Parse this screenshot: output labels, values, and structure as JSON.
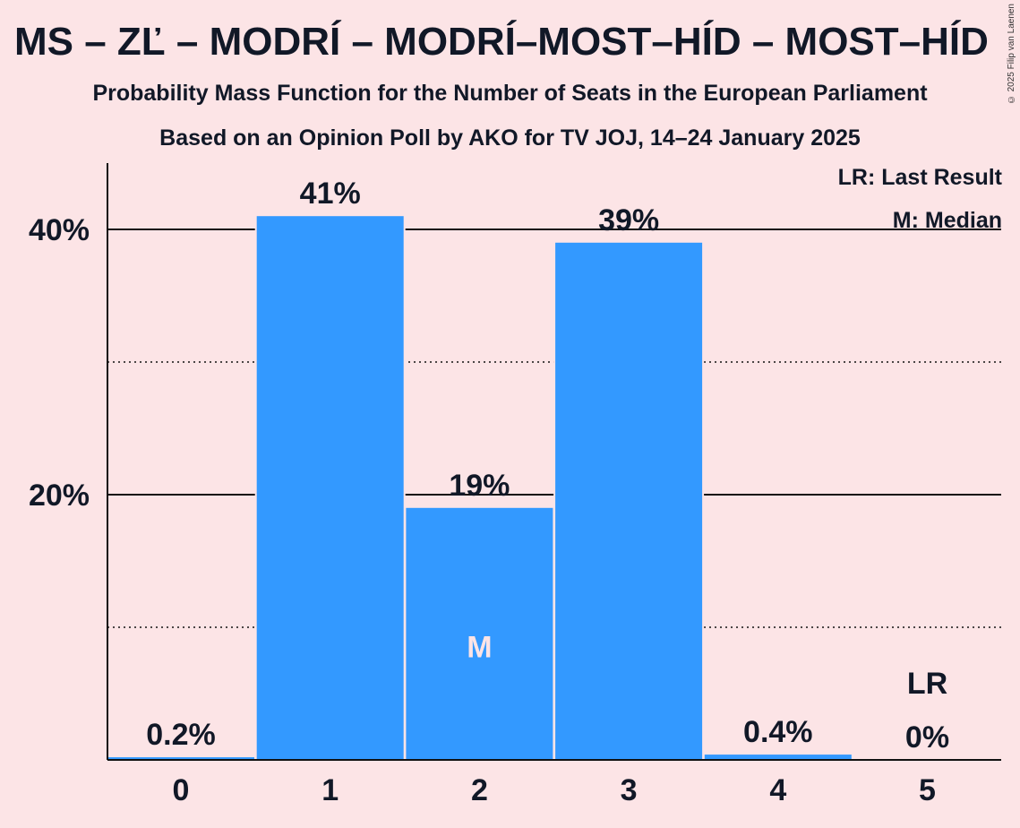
{
  "title": "MS – ZĽ – MODRÍ – MODRÍ–MOST–HÍD – MOST–HÍD",
  "subtitle": "Probability Mass Function for the Number of Seats in the European Parliament",
  "subtitle2": "Based on an Opinion Poll by AKO for TV JOJ, 14–24 January 2025",
  "copyright": "© 2025 Filip van Laenen",
  "legend": {
    "last_result": "LR: Last Result",
    "median": "M: Median"
  },
  "colors": {
    "bar": "#3399ff",
    "background": "#fce4e6",
    "text": "#111827"
  },
  "chart_data": {
    "type": "bar",
    "categories": [
      "0",
      "1",
      "2",
      "3",
      "4",
      "5"
    ],
    "values": [
      0.2,
      41,
      19,
      39,
      0.4,
      0
    ],
    "value_labels": [
      "0.2%",
      "41%",
      "19%",
      "39%",
      "0.4%",
      "0%"
    ],
    "ylim": [
      0,
      45
    ],
    "yticks": [
      {
        "value": 10,
        "label": "",
        "style": "dotted"
      },
      {
        "value": 20,
        "label": "20%",
        "style": "solid"
      },
      {
        "value": 30,
        "label": "",
        "style": "dotted"
      },
      {
        "value": 40,
        "label": "40%",
        "style": "solid"
      }
    ],
    "median_category": "2",
    "median_marker": "M",
    "last_result_category": "5",
    "last_result_marker": "LR"
  }
}
